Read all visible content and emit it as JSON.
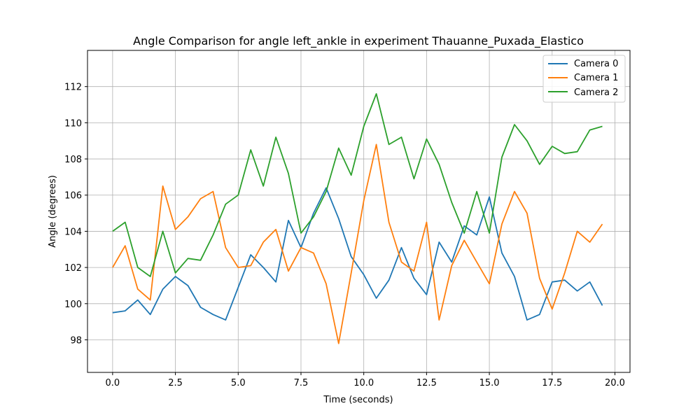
{
  "chart_data": {
    "type": "line",
    "title": "Angle Comparison for angle left_ankle in experiment Thauanne_Puxada_Elastico",
    "xlabel": "Time (seconds)",
    "ylabel": "Angle (degrees)",
    "xlim": [
      -1.0,
      20.6
    ],
    "ylim": [
      96.2,
      114.0
    ],
    "xticks": [
      0.0,
      2.5,
      5.0,
      7.5,
      10.0,
      12.5,
      15.0,
      17.5,
      20.0
    ],
    "xtick_labels": [
      "0.0",
      "2.5",
      "5.0",
      "7.5",
      "10.0",
      "12.5",
      "15.0",
      "17.5",
      "20.0"
    ],
    "yticks": [
      98,
      100,
      102,
      104,
      106,
      108,
      110,
      112
    ],
    "ytick_labels": [
      "98",
      "100",
      "102",
      "104",
      "106",
      "108",
      "110",
      "112"
    ],
    "grid": true,
    "legend_position": "top-right",
    "x": [
      0.0,
      0.5,
      1.0,
      1.5,
      2.0,
      2.5,
      3.0,
      3.5,
      4.0,
      4.5,
      5.0,
      5.5,
      6.0,
      6.5,
      7.0,
      7.5,
      8.0,
      8.5,
      9.0,
      9.5,
      10.0,
      10.5,
      11.0,
      11.5,
      12.0,
      12.5,
      13.0,
      13.5,
      14.0,
      14.5,
      15.0,
      15.5,
      16.0,
      16.5,
      17.0,
      17.5,
      18.0,
      18.5,
      19.0,
      19.5
    ],
    "series": [
      {
        "name": "Camera 0",
        "color": "#1f77b4",
        "values": [
          99.5,
          99.6,
          100.2,
          99.4,
          100.8,
          101.5,
          101.0,
          99.8,
          99.4,
          99.1,
          100.9,
          102.7,
          102.0,
          101.2,
          104.6,
          103.1,
          105.0,
          106.4,
          104.7,
          102.6,
          101.6,
          100.3,
          101.3,
          103.1,
          101.4,
          100.5,
          103.4,
          102.3,
          104.3,
          103.8,
          105.9,
          102.8,
          101.5,
          99.1,
          99.4,
          101.2,
          101.3,
          100.7,
          101.2,
          99.9
        ]
      },
      {
        "name": "Camera 1",
        "color": "#ff7f0e",
        "values": [
          102.0,
          103.2,
          100.8,
          100.2,
          106.5,
          104.1,
          104.8,
          105.8,
          106.2,
          103.1,
          102.0,
          102.1,
          103.4,
          104.1,
          101.8,
          103.1,
          102.8,
          101.1,
          97.8,
          101.7,
          105.7,
          108.8,
          104.5,
          102.3,
          101.8,
          104.5,
          99.1,
          102.1,
          103.5,
          102.3,
          101.1,
          104.4,
          106.2,
          105.0,
          101.4,
          99.7,
          101.7,
          104.0,
          103.4,
          104.4
        ]
      },
      {
        "name": "Camera 2",
        "color": "#2ca02c",
        "values": [
          104.0,
          104.5,
          102.0,
          101.5,
          104.0,
          101.7,
          102.5,
          102.4,
          103.8,
          105.5,
          106.0,
          108.5,
          106.5,
          109.2,
          107.2,
          103.9,
          104.8,
          106.2,
          108.6,
          107.1,
          109.8,
          111.6,
          108.8,
          109.2,
          106.9,
          109.1,
          107.7,
          105.6,
          103.9,
          106.2,
          103.9,
          108.1,
          109.9,
          109.0,
          107.7,
          108.7,
          108.3,
          108.4,
          109.6,
          109.8
        ]
      }
    ]
  }
}
